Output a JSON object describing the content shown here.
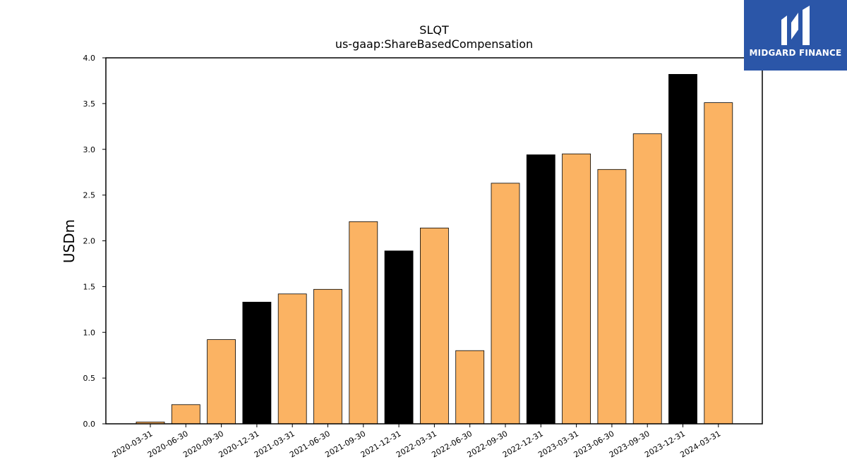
{
  "chart_data": {
    "type": "bar",
    "title": "SLQT",
    "subtitle": "us-gaap:ShareBasedCompensation",
    "xlabel": "",
    "ylabel": "USDm",
    "ylim": [
      0,
      4.0
    ],
    "yticks": [
      "0.0",
      "0.5",
      "1.0",
      "1.5",
      "2.0",
      "2.5",
      "3.0",
      "3.5",
      "4.0"
    ],
    "grid": false,
    "categories": [
      "2020-03-31",
      "2020-06-30",
      "2020-09-30",
      "2020-12-31",
      "2021-03-31",
      "2021-06-30",
      "2021-09-30",
      "2021-12-31",
      "2022-03-31",
      "2022-06-30",
      "2022-09-30",
      "2022-12-31",
      "2023-03-31",
      "2023-06-30",
      "2023-09-30",
      "2023-12-31",
      "2024-03-31"
    ],
    "values": [
      0.02,
      0.21,
      0.92,
      1.33,
      1.42,
      1.47,
      2.21,
      1.89,
      2.14,
      0.8,
      2.63,
      2.94,
      2.95,
      2.78,
      3.17,
      3.82,
      3.51
    ],
    "bar_colors": [
      "#fbb363",
      "#fbb363",
      "#fbb363",
      "#000000",
      "#fbb363",
      "#fbb363",
      "#fbb363",
      "#000000",
      "#fbb363",
      "#fbb363",
      "#fbb363",
      "#000000",
      "#fbb363",
      "#fbb363",
      "#fbb363",
      "#000000",
      "#fbb363"
    ]
  },
  "logo": {
    "text": "MIDGARD FINANCE",
    "background": "#2b56a8"
  }
}
